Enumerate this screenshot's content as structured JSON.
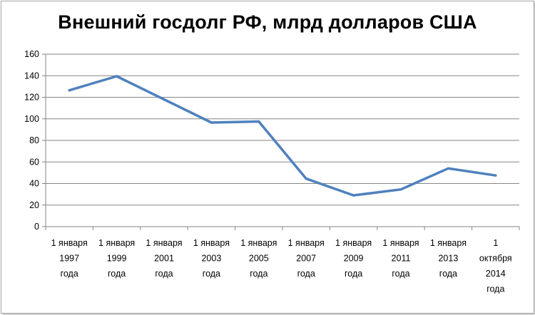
{
  "chart_data": {
    "type": "line",
    "title": "Внешний госдолг РФ, млрд долларов США",
    "xlabel": "",
    "ylabel": "",
    "categories": [
      [
        "1 января",
        "1997",
        "года"
      ],
      [
        "1 января",
        "1999",
        "года"
      ],
      [
        "1 января",
        "2001",
        "года"
      ],
      [
        "1 января",
        "2003",
        "года"
      ],
      [
        "1 января",
        "2005",
        "года"
      ],
      [
        "1 января",
        "2007",
        "года"
      ],
      [
        "1 января",
        "2009",
        "года"
      ],
      [
        "1 января",
        "2011",
        "года"
      ],
      [
        "1 января",
        "2013",
        "года"
      ],
      [
        "1",
        "октября",
        "2014",
        "года"
      ]
    ],
    "series": [
      {
        "values": [
          126.5,
          139.5,
          118,
          96.5,
          97.5,
          44.5,
          29,
          34.5,
          54,
          47.5
        ],
        "color": "#4f81bd"
      }
    ],
    "ylim": [
      0,
      160
    ],
    "yticks": [
      0,
      20,
      40,
      60,
      80,
      100,
      120,
      140,
      160
    ],
    "grid": true,
    "legend": "none"
  }
}
